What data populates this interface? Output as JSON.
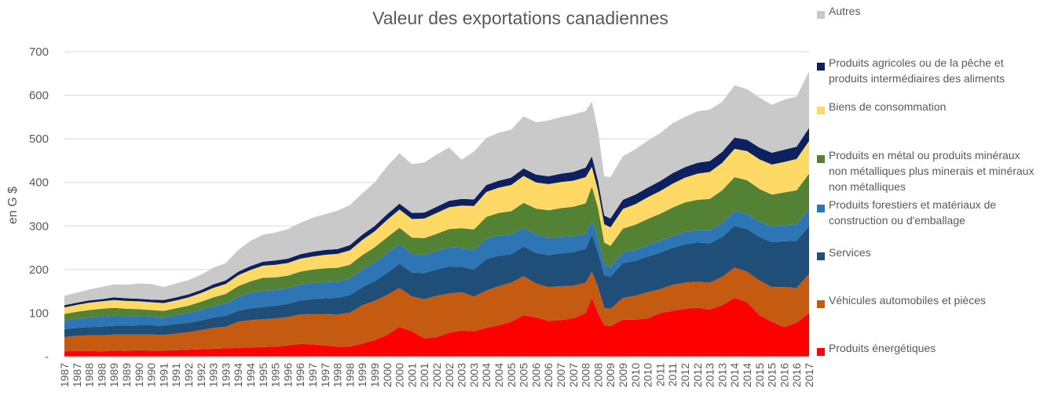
{
  "chart_data": {
    "type": "area",
    "stacked": true,
    "title": "Valeur des exportations canadiennes",
    "ylabel": "en G $",
    "ylim": [
      0,
      700
    ],
    "yticks": [
      "-",
      "100",
      "200",
      "300",
      "400",
      "500",
      "600",
      "700"
    ],
    "grid": true,
    "legend_position": "right",
    "xtick_labels": [
      "1987",
      "1987",
      "1988",
      "1988",
      "1989",
      "1989",
      "1990",
      "1990",
      "1991",
      "1991",
      "1992",
      "1992",
      "1993",
      "1993",
      "1994",
      "1994",
      "1995",
      "1995",
      "1996",
      "1996",
      "1997",
      "1997",
      "1998",
      "1998",
      "1999",
      "1999",
      "2000",
      "2000",
      "2001",
      "2001",
      "2002",
      "2002",
      "2003",
      "2003",
      "2004",
      "2004",
      "2005",
      "2005",
      "2006",
      "2006",
      "2007",
      "2007",
      "2008",
      "2008",
      "2009",
      "2009",
      "2010",
      "2010",
      "2011",
      "2011",
      "2012",
      "2012",
      "2013",
      "2013",
      "2014",
      "2014",
      "2015",
      "2015",
      "2016",
      "2016",
      "2017"
    ],
    "x_dates": [
      1987.0,
      1987.5,
      1988.0,
      1988.5,
      1989.0,
      1989.5,
      1990.0,
      1990.5,
      1991.0,
      1991.5,
      1992.0,
      1992.5,
      1993.0,
      1993.5,
      1994.0,
      1994.5,
      1995.0,
      1995.5,
      1996.0,
      1996.5,
      1997.0,
      1997.5,
      1998.0,
      1998.5,
      1999.0,
      1999.5,
      2000.0,
      2000.5,
      2001.0,
      2001.5,
      2002.0,
      2002.5,
      2003.0,
      2003.5,
      2004.0,
      2004.5,
      2005.0,
      2005.5,
      2006.0,
      2006.5,
      2007.0,
      2007.5,
      2008.0,
      2008.25,
      2008.5,
      2008.75,
      2009.0,
      2009.5,
      2010.0,
      2010.5,
      2011.0,
      2011.5,
      2012.0,
      2012.5,
      2013.0,
      2013.5,
      2014.0,
      2014.5,
      2015.0,
      2015.5,
      2016.0,
      2016.5,
      2017.0
    ],
    "series": [
      {
        "name": "Produits énergétiques",
        "color": "#ff0000",
        "values": [
          12,
          13,
          13,
          12,
          14,
          13,
          15,
          14,
          14,
          15,
          16,
          17,
          18,
          19,
          20,
          21,
          22,
          23,
          26,
          29,
          28,
          26,
          23,
          23,
          30,
          38,
          50,
          68,
          58,
          42,
          45,
          55,
          60,
          58,
          66,
          72,
          80,
          95,
          90,
          82,
          84,
          88,
          100,
          135,
          100,
          72,
          70,
          85,
          85,
          88,
          100,
          105,
          110,
          112,
          108,
          118,
          135,
          125,
          95,
          80,
          68,
          78,
          100
        ]
      },
      {
        "name": "Véhicules automobiles et pièces",
        "color": "#c55a11",
        "values": [
          33,
          35,
          36,
          37,
          37,
          38,
          36,
          37,
          36,
          38,
          40,
          44,
          48,
          50,
          60,
          63,
          64,
          65,
          65,
          68,
          70,
          72,
          74,
          78,
          88,
          90,
          92,
          90,
          80,
          90,
          95,
          90,
          88,
          80,
          86,
          90,
          90,
          90,
          78,
          78,
          78,
          75,
          70,
          60,
          60,
          40,
          40,
          50,
          55,
          60,
          55,
          60,
          60,
          60,
          62,
          65,
          70,
          70,
          80,
          80,
          92,
          80,
          90
        ]
      },
      {
        "name": "Services",
        "color": "#1f4e79",
        "values": [
          18,
          18,
          19,
          20,
          20,
          20,
          21,
          21,
          21,
          22,
          22,
          22,
          24,
          25,
          25,
          27,
          28,
          29,
          30,
          32,
          34,
          36,
          38,
          40,
          42,
          45,
          50,
          55,
          55,
          60,
          60,
          62,
          58,
          62,
          72,
          70,
          65,
          68,
          70,
          73,
          75,
          77,
          78,
          85,
          80,
          75,
          74,
          80,
          80,
          82,
          84,
          85,
          88,
          90,
          90,
          92,
          95,
          98,
          100,
          103,
          105,
          108,
          110
        ]
      },
      {
        "name": "Produits forestiers et matériaux de construction ou d'emballage",
        "color": "#2e75b6",
        "values": [
          20,
          21,
          22,
          23,
          23,
          22,
          21,
          20,
          19,
          20,
          22,
          24,
          26,
          28,
          32,
          35,
          37,
          36,
          36,
          36,
          37,
          37,
          37,
          38,
          40,
          43,
          45,
          45,
          43,
          42,
          42,
          44,
          44,
          44,
          47,
          46,
          45,
          43,
          42,
          40,
          38,
          36,
          34,
          33,
          31,
          25,
          22,
          24,
          25,
          26,
          27,
          27,
          28,
          28,
          30,
          32,
          34,
          35,
          35,
          36,
          37,
          38,
          40
        ]
      },
      {
        "name": "Produits en métal ou produits minéraux non métalliques plus minerais et minéraux non métalliques",
        "color": "#548235",
        "values": [
          15,
          16,
          17,
          18,
          18,
          17,
          16,
          15,
          15,
          16,
          17,
          19,
          20,
          22,
          25,
          27,
          30,
          29,
          29,
          30,
          31,
          32,
          32,
          32,
          33,
          35,
          37,
          38,
          37,
          38,
          40,
          42,
          45,
          48,
          50,
          52,
          54,
          57,
          60,
          63,
          66,
          68,
          70,
          78,
          70,
          50,
          48,
          55,
          58,
          60,
          62,
          65,
          68,
          70,
          72,
          75,
          78,
          77,
          75,
          73,
          75,
          78,
          80
        ]
      },
      {
        "name": "Biens de consommation",
        "color": "#ffd966",
        "values": [
          15,
          16,
          17,
          17,
          18,
          18,
          18,
          18,
          18,
          18,
          19,
          20,
          22,
          23,
          25,
          26,
          28,
          29,
          29,
          30,
          30,
          31,
          32,
          33,
          35,
          37,
          40,
          42,
          43,
          45,
          48,
          50,
          52,
          54,
          57,
          58,
          60,
          62,
          60,
          60,
          60,
          60,
          60,
          45,
          40,
          42,
          43,
          45,
          47,
          50,
          52,
          55,
          57,
          60,
          62,
          63,
          65,
          67,
          68,
          69,
          70,
          72,
          75
        ]
      },
      {
        "name": "Produits agricoles ou de la pêche et produits intermédiaires des aliments",
        "color": "#0d2060",
        "values": [
          5,
          5,
          5,
          5,
          6,
          6,
          6,
          6,
          7,
          7,
          7,
          7,
          8,
          8,
          8,
          9,
          9,
          10,
          10,
          10,
          11,
          11,
          11,
          12,
          12,
          12,
          13,
          13,
          14,
          14,
          14,
          15,
          15,
          15,
          16,
          16,
          17,
          17,
          18,
          18,
          19,
          20,
          22,
          24,
          22,
          20,
          20,
          21,
          22,
          22,
          23,
          24,
          24,
          25,
          25,
          25,
          26,
          26,
          27,
          27,
          28,
          28,
          30
        ]
      },
      {
        "name": "Autres",
        "color": "#c9c9c9",
        "values": [
          22,
          23,
          25,
          28,
          30,
          31,
          35,
          36,
          30,
          32,
          33,
          35,
          38,
          40,
          50,
          58,
          62,
          64,
          68,
          72,
          78,
          82,
          88,
          92,
          95,
          100,
          110,
          116,
          112,
          115,
          120,
          122,
          90,
          110,
          108,
          110,
          110,
          120,
          120,
          128,
          130,
          132,
          130,
          125,
          115,
          90,
          95,
          100,
          104,
          108,
          110,
          115,
          115,
          118,
          118,
          115,
          120,
          116,
          115,
          110,
          115,
          115,
          130
        ]
      }
    ]
  }
}
